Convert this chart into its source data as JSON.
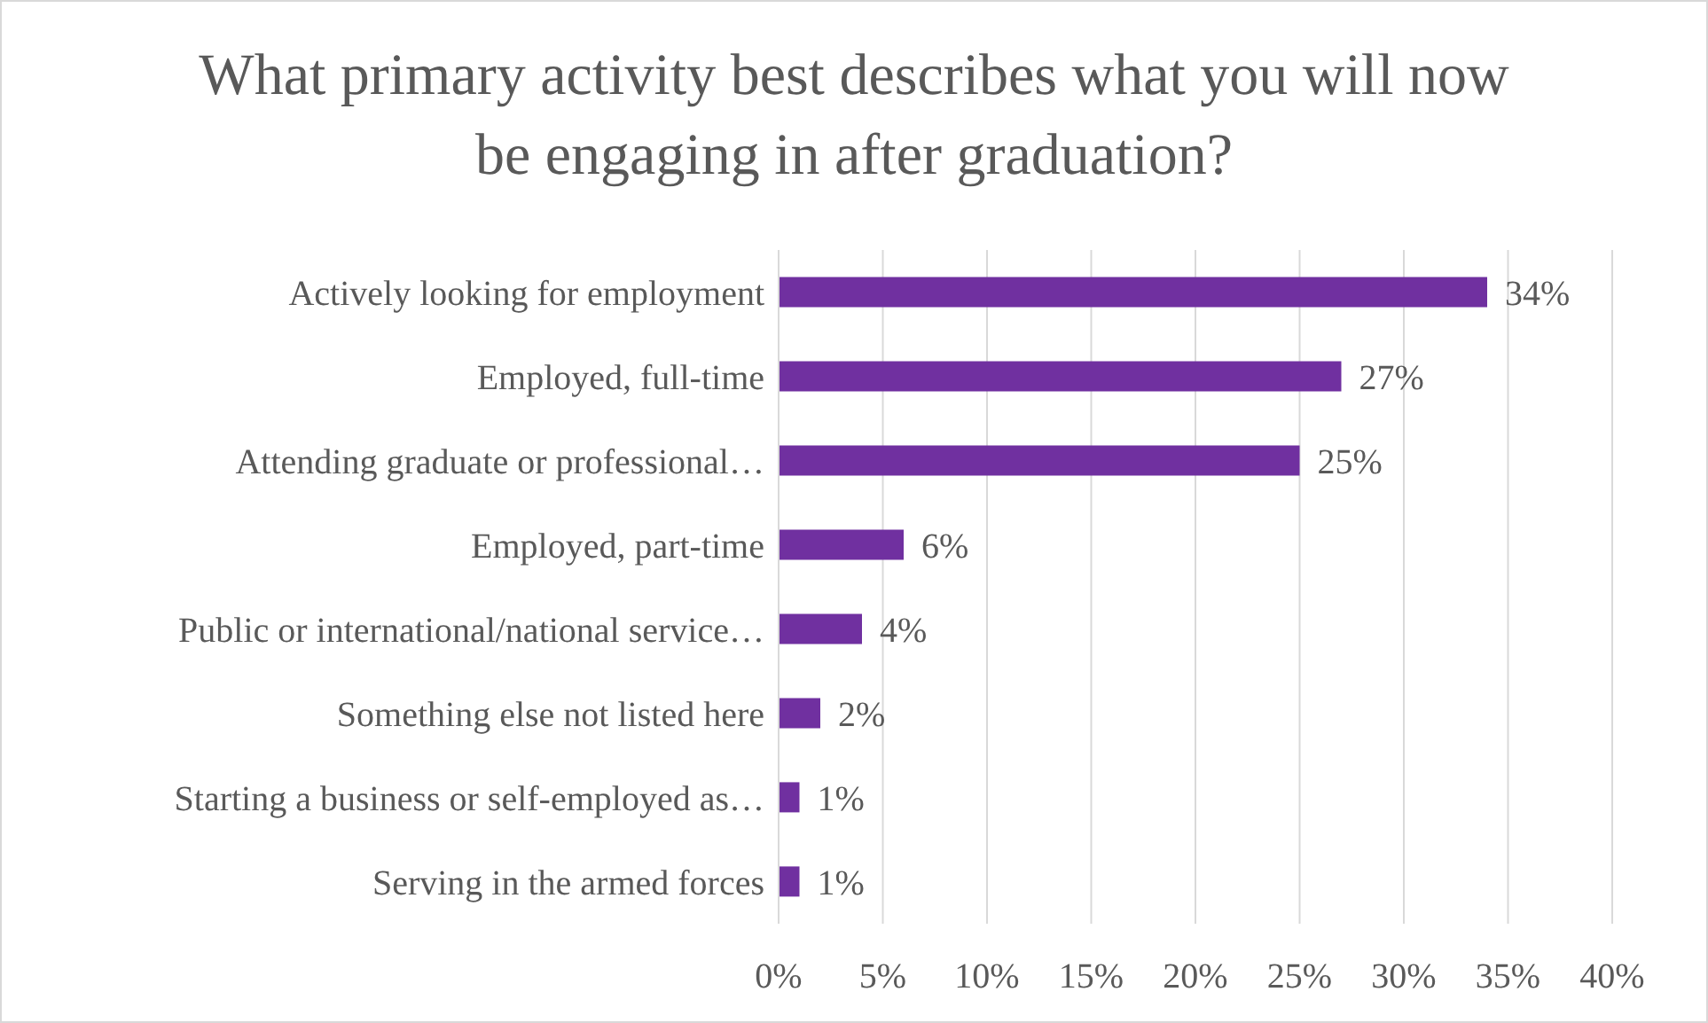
{
  "chart_data": {
    "type": "bar",
    "orientation": "horizontal",
    "title": "What primary activity best describes what you will now be engaging in after graduation?",
    "categories": [
      "Actively looking for employment",
      "Employed, full-time",
      "Attending graduate or professional…",
      "Employed, part-time",
      "Public or international/national service…",
      "Something else not listed here",
      "Starting a business or self-employed as…",
      "Serving in the armed forces"
    ],
    "values": [
      34,
      27,
      25,
      6,
      4,
      2,
      1,
      1
    ],
    "value_labels": [
      "34%",
      "27%",
      "25%",
      "6%",
      "4%",
      "2%",
      "1%",
      "1%"
    ],
    "color": "#7030a0",
    "xlim": [
      0,
      40
    ],
    "xticks": [
      {
        "value": 0,
        "label": "0%"
      },
      {
        "value": 5,
        "label": "5%"
      },
      {
        "value": 10,
        "label": "10%"
      },
      {
        "value": 15,
        "label": "15%"
      },
      {
        "value": 20,
        "label": "20%"
      },
      {
        "value": 25,
        "label": "25%"
      },
      {
        "value": 30,
        "label": "30%"
      },
      {
        "value": 35,
        "label": "35%"
      },
      {
        "value": 40,
        "label": "40%"
      }
    ],
    "grid": "x",
    "legend": false
  }
}
